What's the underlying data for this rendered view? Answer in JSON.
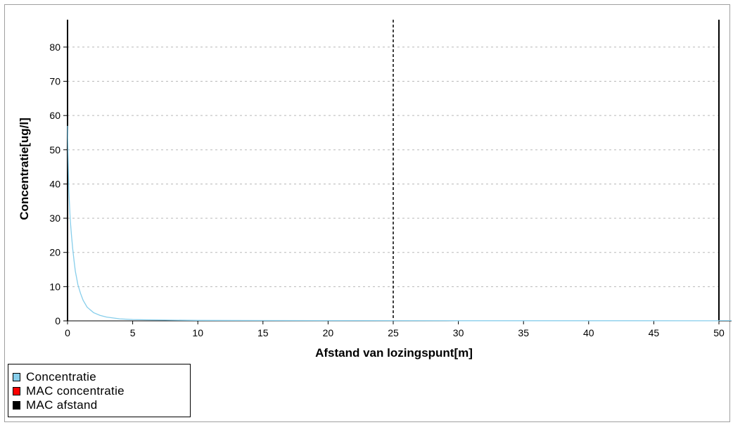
{
  "chart_data": {
    "type": "line",
    "xlabel": "Afstand van lozingspunt[m]",
    "ylabel": "Concentratie[ug/l]",
    "xlim": [
      0,
      50
    ],
    "ylim": [
      0,
      88
    ],
    "x_ticks": [
      "0",
      "5",
      "10",
      "15",
      "20",
      "25",
      "30",
      "35",
      "40",
      "45",
      "50"
    ],
    "y_ticks": [
      "0",
      "10",
      "20",
      "30",
      "40",
      "50",
      "60",
      "70",
      "80"
    ],
    "grid": "horizontal-dashed",
    "legend_placement": "bottom-left",
    "series": [
      {
        "name": "Concentratie",
        "color": "#87CEEB",
        "x": [
          0,
          0.1,
          0.2,
          0.3,
          0.4,
          0.5,
          0.6,
          0.8,
          1.0,
          1.2,
          1.5,
          2.0,
          2.5,
          3.0,
          4.0,
          5.0,
          6.0,
          8.0,
          10,
          15,
          20,
          30,
          40,
          50
        ],
        "y": [
          57,
          38,
          30,
          25,
          21,
          17.5,
          14.5,
          10.5,
          8,
          6,
          4,
          2.4,
          1.6,
          1.1,
          0.6,
          0.4,
          0.3,
          0.2,
          0.15,
          0.1,
          0.08,
          0.05,
          0.04,
          0.03
        ]
      },
      {
        "name": "MAC concentratie",
        "color": "#FF0000"
      },
      {
        "name": "MAC afstand",
        "color": "#000000",
        "x_value": 25
      }
    ]
  },
  "legend": {
    "items": [
      {
        "label": "Concentratie",
        "color": "#87CEEB"
      },
      {
        "label": "MAC concentratie",
        "color": "#FF0000"
      },
      {
        "label": "MAC afstand",
        "color": "#000000"
      }
    ]
  }
}
